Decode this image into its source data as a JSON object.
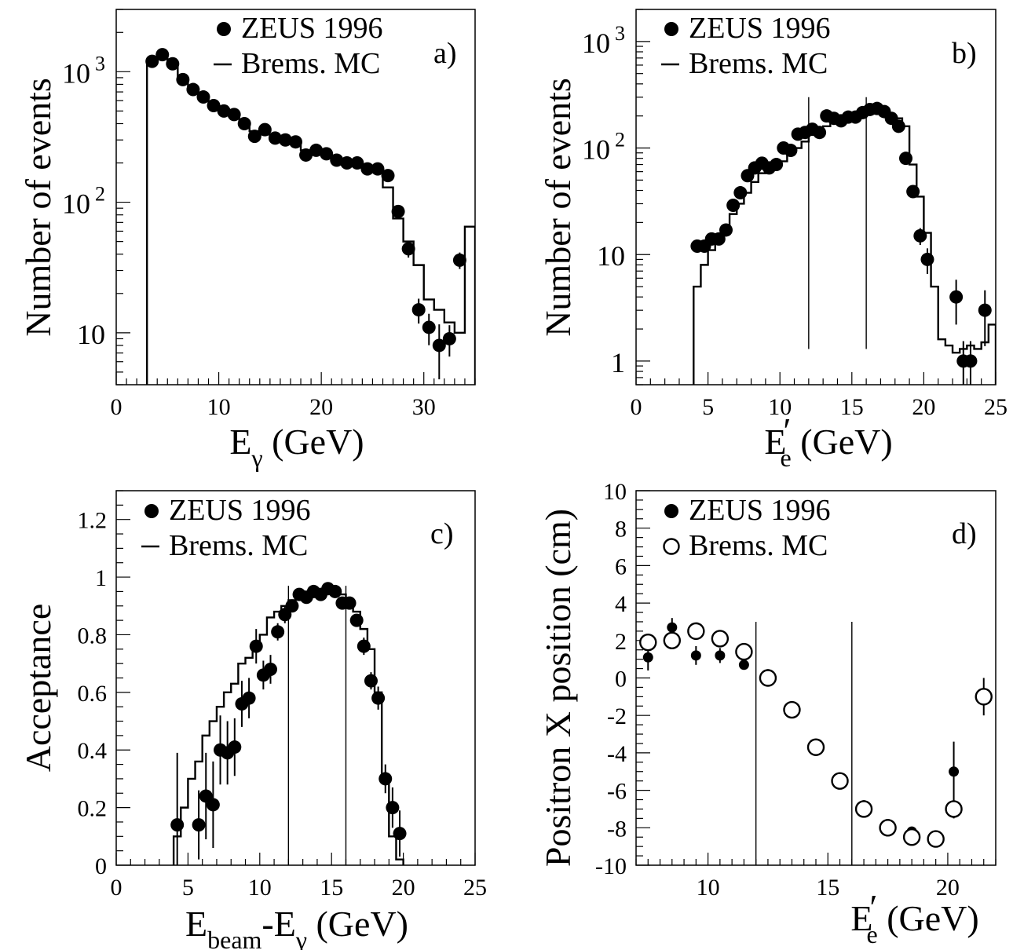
{
  "chart_data": [
    {
      "id": "a",
      "type": "scatter",
      "panel_label": "a)",
      "ylabel": "Number of events",
      "xlabel": {
        "main": "E",
        "sub": "γ",
        "unit": " (GeV)"
      },
      "xlim": [
        0,
        35
      ],
      "ylim": [
        4,
        3000
      ],
      "log_y": true,
      "xticks": [
        0,
        10,
        20,
        30
      ],
      "yticks": [
        {
          "v": 1000,
          "base": "10",
          "sup": "3"
        },
        {
          "v": 100,
          "base": "10",
          "sup": "2"
        },
        {
          "v": 10,
          "base": "10",
          "sup": ""
        }
      ],
      "legend": [
        {
          "marker": "filled-circle",
          "label": "ZEUS 1996"
        },
        {
          "marker": "line",
          "label": "Brems. MC"
        }
      ],
      "series": [
        {
          "name": "ZEUS 1996",
          "marker": "filled",
          "points": [
            [
              3.5,
              1200,
              0.05
            ],
            [
              4.5,
              1350,
              0.05
            ],
            [
              5.5,
              1150,
              0.05
            ],
            [
              6.5,
              870,
              0.05
            ],
            [
              7.5,
              730,
              0.05
            ],
            [
              8.5,
              640,
              0.05
            ],
            [
              9.5,
              550,
              0.05
            ],
            [
              10.5,
              500,
              0.05
            ],
            [
              11.5,
              470,
              0.05
            ],
            [
              12.5,
              400,
              0.05
            ],
            [
              13.5,
              320,
              0.05
            ],
            [
              14.5,
              360,
              0.05
            ],
            [
              15.5,
              310,
              0.05
            ],
            [
              16.5,
              300,
              0.05
            ],
            [
              17.5,
              290,
              0.05
            ],
            [
              18.5,
              230,
              0.05
            ],
            [
              19.5,
              250,
              0.05
            ],
            [
              20.5,
              235,
              0.05
            ],
            [
              21.5,
              210,
              0.05
            ],
            [
              22.5,
              200,
              0.05
            ],
            [
              23.5,
              200,
              0.05
            ],
            [
              24.5,
              180,
              0.05
            ],
            [
              25.5,
              180,
              0.05
            ],
            [
              26.5,
              160,
              0.05
            ],
            [
              27.5,
              85,
              0.05
            ],
            [
              28.5,
              44,
              0.08
            ],
            [
              29.5,
              15,
              0.12
            ],
            [
              30.5,
              11,
              0.15
            ],
            [
              31.5,
              8,
              0.25
            ],
            [
              32.5,
              9,
              0.15
            ],
            [
              33.5,
              36,
              0.08
            ]
          ]
        },
        {
          "name": "Brems. MC",
          "type": "histogram",
          "edges": [
            3,
            4,
            5,
            6,
            7,
            8,
            9,
            10,
            11,
            12,
            13,
            14,
            15,
            16,
            17,
            18,
            19,
            20,
            21,
            22,
            23,
            24,
            25,
            26,
            27,
            28,
            29,
            30,
            31,
            32,
            33,
            34,
            35
          ],
          "values": [
            1200,
            1300,
            1150,
            880,
            720,
            640,
            560,
            500,
            460,
            400,
            350,
            330,
            310,
            300,
            280,
            250,
            240,
            230,
            210,
            200,
            190,
            180,
            175,
            130,
            75,
            50,
            33,
            18,
            15,
            12,
            10,
            65
          ]
        }
      ]
    },
    {
      "id": "b",
      "type": "scatter",
      "panel_label": "b)",
      "ylabel": "Number of events",
      "xlabel": {
        "main": "E",
        "sub": "e",
        "prime": "′",
        "unit": " (GeV)"
      },
      "xlim": [
        0,
        25
      ],
      "ylim": [
        0.6,
        2000
      ],
      "log_y": true,
      "xticks": [
        0,
        5,
        10,
        15,
        20,
        25
      ],
      "yticks": [
        {
          "v": 1000,
          "base": "10",
          "sup": "3"
        },
        {
          "v": 100,
          "base": "10",
          "sup": "2"
        },
        {
          "v": 10,
          "base": "10",
          "sup": ""
        },
        {
          "v": 1,
          "base": "1",
          "sup": ""
        }
      ],
      "vlines": [
        {
          "x": 12,
          "from": 1.3,
          "to": 300
        },
        {
          "x": 16,
          "from": 1.3,
          "to": 300
        }
      ],
      "legend": [
        {
          "marker": "filled-circle",
          "label": "ZEUS 1996"
        },
        {
          "marker": "line",
          "label": "Brems. MC"
        }
      ],
      "series": [
        {
          "name": "ZEUS 1996",
          "marker": "filled",
          "points": [
            [
              4.25,
              12,
              0.06
            ],
            [
              4.75,
              12,
              0.06
            ],
            [
              5.25,
              14,
              0.06
            ],
            [
              5.75,
              14,
              0.06
            ],
            [
              6.25,
              17,
              0.06
            ],
            [
              6.75,
              29,
              0.05
            ],
            [
              7.25,
              38,
              0.05
            ],
            [
              7.75,
              55,
              0.05
            ],
            [
              8.25,
              65,
              0.05
            ],
            [
              8.75,
              72,
              0.05
            ],
            [
              9.25,
              65,
              0.05
            ],
            [
              9.75,
              70,
              0.05
            ],
            [
              10.25,
              100,
              0.05
            ],
            [
              10.75,
              95,
              0.05
            ],
            [
              11.25,
              135,
              0.05
            ],
            [
              11.75,
              140,
              0.05
            ],
            [
              12.25,
              150,
              0.05
            ],
            [
              12.75,
              140,
              0.05
            ],
            [
              13.25,
              200,
              0.05
            ],
            [
              13.75,
              190,
              0.05
            ],
            [
              14.25,
              180,
              0.05
            ],
            [
              14.75,
              195,
              0.05
            ],
            [
              15.25,
              195,
              0.05
            ],
            [
              15.75,
              215,
              0.05
            ],
            [
              16.25,
              230,
              0.05
            ],
            [
              16.75,
              235,
              0.05
            ],
            [
              17.25,
              220,
              0.05
            ],
            [
              17.75,
              190,
              0.05
            ],
            [
              18.25,
              160,
              0.05
            ],
            [
              18.75,
              80,
              0.05
            ],
            [
              19.25,
              39,
              0.06
            ],
            [
              19.75,
              15,
              0.1
            ],
            [
              20.25,
              9,
              0.15
            ],
            [
              22.25,
              4,
              0.25
            ],
            [
              22.75,
              1,
              0.3
            ],
            [
              23.25,
              1,
              0.3
            ],
            [
              24.25,
              3,
              0.3
            ]
          ]
        },
        {
          "name": "Brems. MC",
          "type": "histogram",
          "edges": [
            4,
            4.5,
            5,
            5.5,
            6,
            6.5,
            7,
            7.5,
            8,
            8.5,
            9,
            9.5,
            10,
            10.5,
            11,
            11.5,
            12,
            12.5,
            13,
            13.5,
            14,
            14.5,
            15,
            15.5,
            16,
            16.5,
            17,
            17.5,
            18,
            18.5,
            19,
            19.5,
            20,
            20.5,
            21,
            21.5,
            22,
            22.5,
            23,
            23.5,
            24,
            24.5,
            25
          ],
          "values": [
            5,
            8,
            11,
            14,
            17,
            24,
            30,
            38,
            48,
            58,
            65,
            68,
            75,
            90,
            100,
            115,
            135,
            150,
            160,
            180,
            185,
            190,
            200,
            205,
            210,
            215,
            220,
            205,
            190,
            160,
            70,
            35,
            16,
            5,
            1.6,
            1.4,
            1.2,
            1.3,
            1.4,
            1.3,
            1.5,
            2.2
          ]
        }
      ]
    },
    {
      "id": "c",
      "type": "scatter",
      "panel_label": "c)",
      "ylabel": "Acceptance",
      "xlabel": {
        "main": "E",
        "sub": "beam",
        "mid": "-E",
        "sub2": "γ",
        "unit": " (GeV)"
      },
      "xlim": [
        0,
        25
      ],
      "ylim": [
        0,
        1.3
      ],
      "log_y": false,
      "xticks": [
        0,
        5,
        10,
        15,
        20,
        25
      ],
      "yticklabels": [
        "0",
        "0.2",
        "0.4",
        "0.6",
        "0.8",
        "1",
        "1.2"
      ],
      "yticks": [
        0,
        0.2,
        0.4,
        0.6,
        0.8,
        1.0,
        1.2
      ],
      "vlines": [
        {
          "x": 12,
          "from": 0.0,
          "to": 0.97
        },
        {
          "x": 16,
          "from": 0.0,
          "to": 0.97
        }
      ],
      "legend": [
        {
          "marker": "filled-circle",
          "label": "ZEUS 1996"
        },
        {
          "marker": "line",
          "label": "Brems. MC"
        }
      ],
      "series": [
        {
          "name": "ZEUS 1996",
          "marker": "filled",
          "points": [
            [
              4.25,
              0.14,
              0.25
            ],
            [
              5.75,
              0.14,
              0.12
            ],
            [
              6.25,
              0.24,
              0.15
            ],
            [
              6.75,
              0.21,
              0.15
            ],
            [
              7.25,
              0.4,
              0.12
            ],
            [
              7.75,
              0.39,
              0.11
            ],
            [
              8.25,
              0.41,
              0.1
            ],
            [
              8.75,
              0.56,
              0.08
            ],
            [
              9.25,
              0.58,
              0.07
            ],
            [
              9.75,
              0.76,
              0.06
            ],
            [
              10.25,
              0.66,
              0.05
            ],
            [
              10.75,
              0.68,
              0.05
            ],
            [
              11.25,
              0.81,
              0.03
            ],
            [
              11.75,
              0.87,
              0.03
            ],
            [
              12.25,
              0.9,
              0.02
            ],
            [
              12.75,
              0.94,
              0.02
            ],
            [
              13.25,
              0.93,
              0.02
            ],
            [
              13.75,
              0.95,
              0.02
            ],
            [
              14.25,
              0.94,
              0.02
            ],
            [
              14.75,
              0.96,
              0.02
            ],
            [
              15.25,
              0.95,
              0.02
            ],
            [
              15.75,
              0.91,
              0.02
            ],
            [
              16.25,
              0.91,
              0.02
            ],
            [
              16.75,
              0.85,
              0.02
            ],
            [
              17.25,
              0.76,
              0.03
            ],
            [
              17.75,
              0.64,
              0.03
            ],
            [
              18.25,
              0.58,
              0.04
            ],
            [
              18.75,
              0.3,
              0.05
            ],
            [
              19.25,
              0.2,
              0.07
            ],
            [
              19.75,
              0.11,
              0.08
            ]
          ]
        },
        {
          "name": "Brems. MC",
          "type": "histogram",
          "edges": [
            4,
            4.5,
            5,
            5.5,
            6,
            6.5,
            7,
            7.5,
            8,
            8.5,
            9,
            9.5,
            10,
            10.5,
            11,
            11.5,
            12,
            12.5,
            13,
            13.5,
            14,
            14.5,
            15,
            15.5,
            16,
            16.5,
            17,
            17.5,
            18,
            18.5,
            19,
            19.5,
            20
          ],
          "values": [
            0.1,
            0.2,
            0.3,
            0.36,
            0.45,
            0.5,
            0.55,
            0.6,
            0.63,
            0.7,
            0.72,
            0.76,
            0.8,
            0.86,
            0.88,
            0.9,
            0.92,
            0.94,
            0.95,
            0.95,
            0.95,
            0.95,
            0.95,
            0.94,
            0.92,
            0.88,
            0.82,
            0.75,
            0.6,
            0.3,
            0.1,
            0.02
          ]
        }
      ]
    },
    {
      "id": "d",
      "type": "scatter",
      "panel_label": "d)",
      "ylabel": "Positron X position (cm)",
      "xlabel": {
        "main": "E",
        "sub": "e",
        "prime": "′",
        "unit": " (GeV)"
      },
      "xlim": [
        7,
        22
      ],
      "ylim": [
        -10,
        10
      ],
      "log_y": false,
      "xticks": [
        10,
        15,
        20
      ],
      "yticks": [
        -10,
        -8,
        -6,
        -4,
        -2,
        0,
        2,
        4,
        6,
        8,
        10
      ],
      "vlines": [
        {
          "x": 12,
          "from": -10,
          "to": 3
        },
        {
          "x": 16,
          "from": -10,
          "to": 3
        }
      ],
      "legend": [
        {
          "marker": "filled-circle",
          "label": "ZEUS 1996"
        },
        {
          "marker": "open-circle",
          "label": "Brems. MC"
        }
      ],
      "series": [
        {
          "name": "ZEUS 1996",
          "marker": "filled-small",
          "points": [
            [
              7.5,
              1.1,
              0.7
            ],
            [
              8.5,
              2.7,
              0.5
            ],
            [
              9.5,
              1.2,
              0.5
            ],
            [
              10.5,
              1.2,
              0.4
            ],
            [
              11.5,
              0.7,
              0.2
            ],
            [
              12.5,
              0.2,
              0.1
            ],
            [
              13.5,
              -1.8,
              0.1
            ],
            [
              14.5,
              -3.6,
              0.1
            ],
            [
              15.5,
              -5.4,
              0.1
            ],
            [
              16.5,
              -6.8,
              0.1
            ],
            [
              17.5,
              -7.8,
              0.1
            ],
            [
              18.5,
              -8.2,
              0.1
            ],
            [
              19.5,
              -8.5,
              0.1
            ],
            [
              20.25,
              -5.0,
              1.6
            ]
          ]
        },
        {
          "name": "Brems. MC",
          "marker": "open",
          "points": [
            [
              7.5,
              1.9,
              0
            ],
            [
              8.5,
              2.0,
              0
            ],
            [
              9.5,
              2.5,
              0
            ],
            [
              10.5,
              2.1,
              0
            ],
            [
              11.5,
              1.4,
              0
            ],
            [
              12.5,
              0.0,
              0
            ],
            [
              13.5,
              -1.7,
              0
            ],
            [
              14.5,
              -3.7,
              0
            ],
            [
              15.5,
              -5.5,
              0
            ],
            [
              16.5,
              -7.0,
              0
            ],
            [
              17.5,
              -8.0,
              0
            ],
            [
              18.5,
              -8.5,
              0
            ],
            [
              19.5,
              -8.6,
              0
            ],
            [
              20.25,
              -7.0,
              0.5
            ],
            [
              21.5,
              -1.0,
              1.0
            ]
          ]
        }
      ]
    }
  ]
}
